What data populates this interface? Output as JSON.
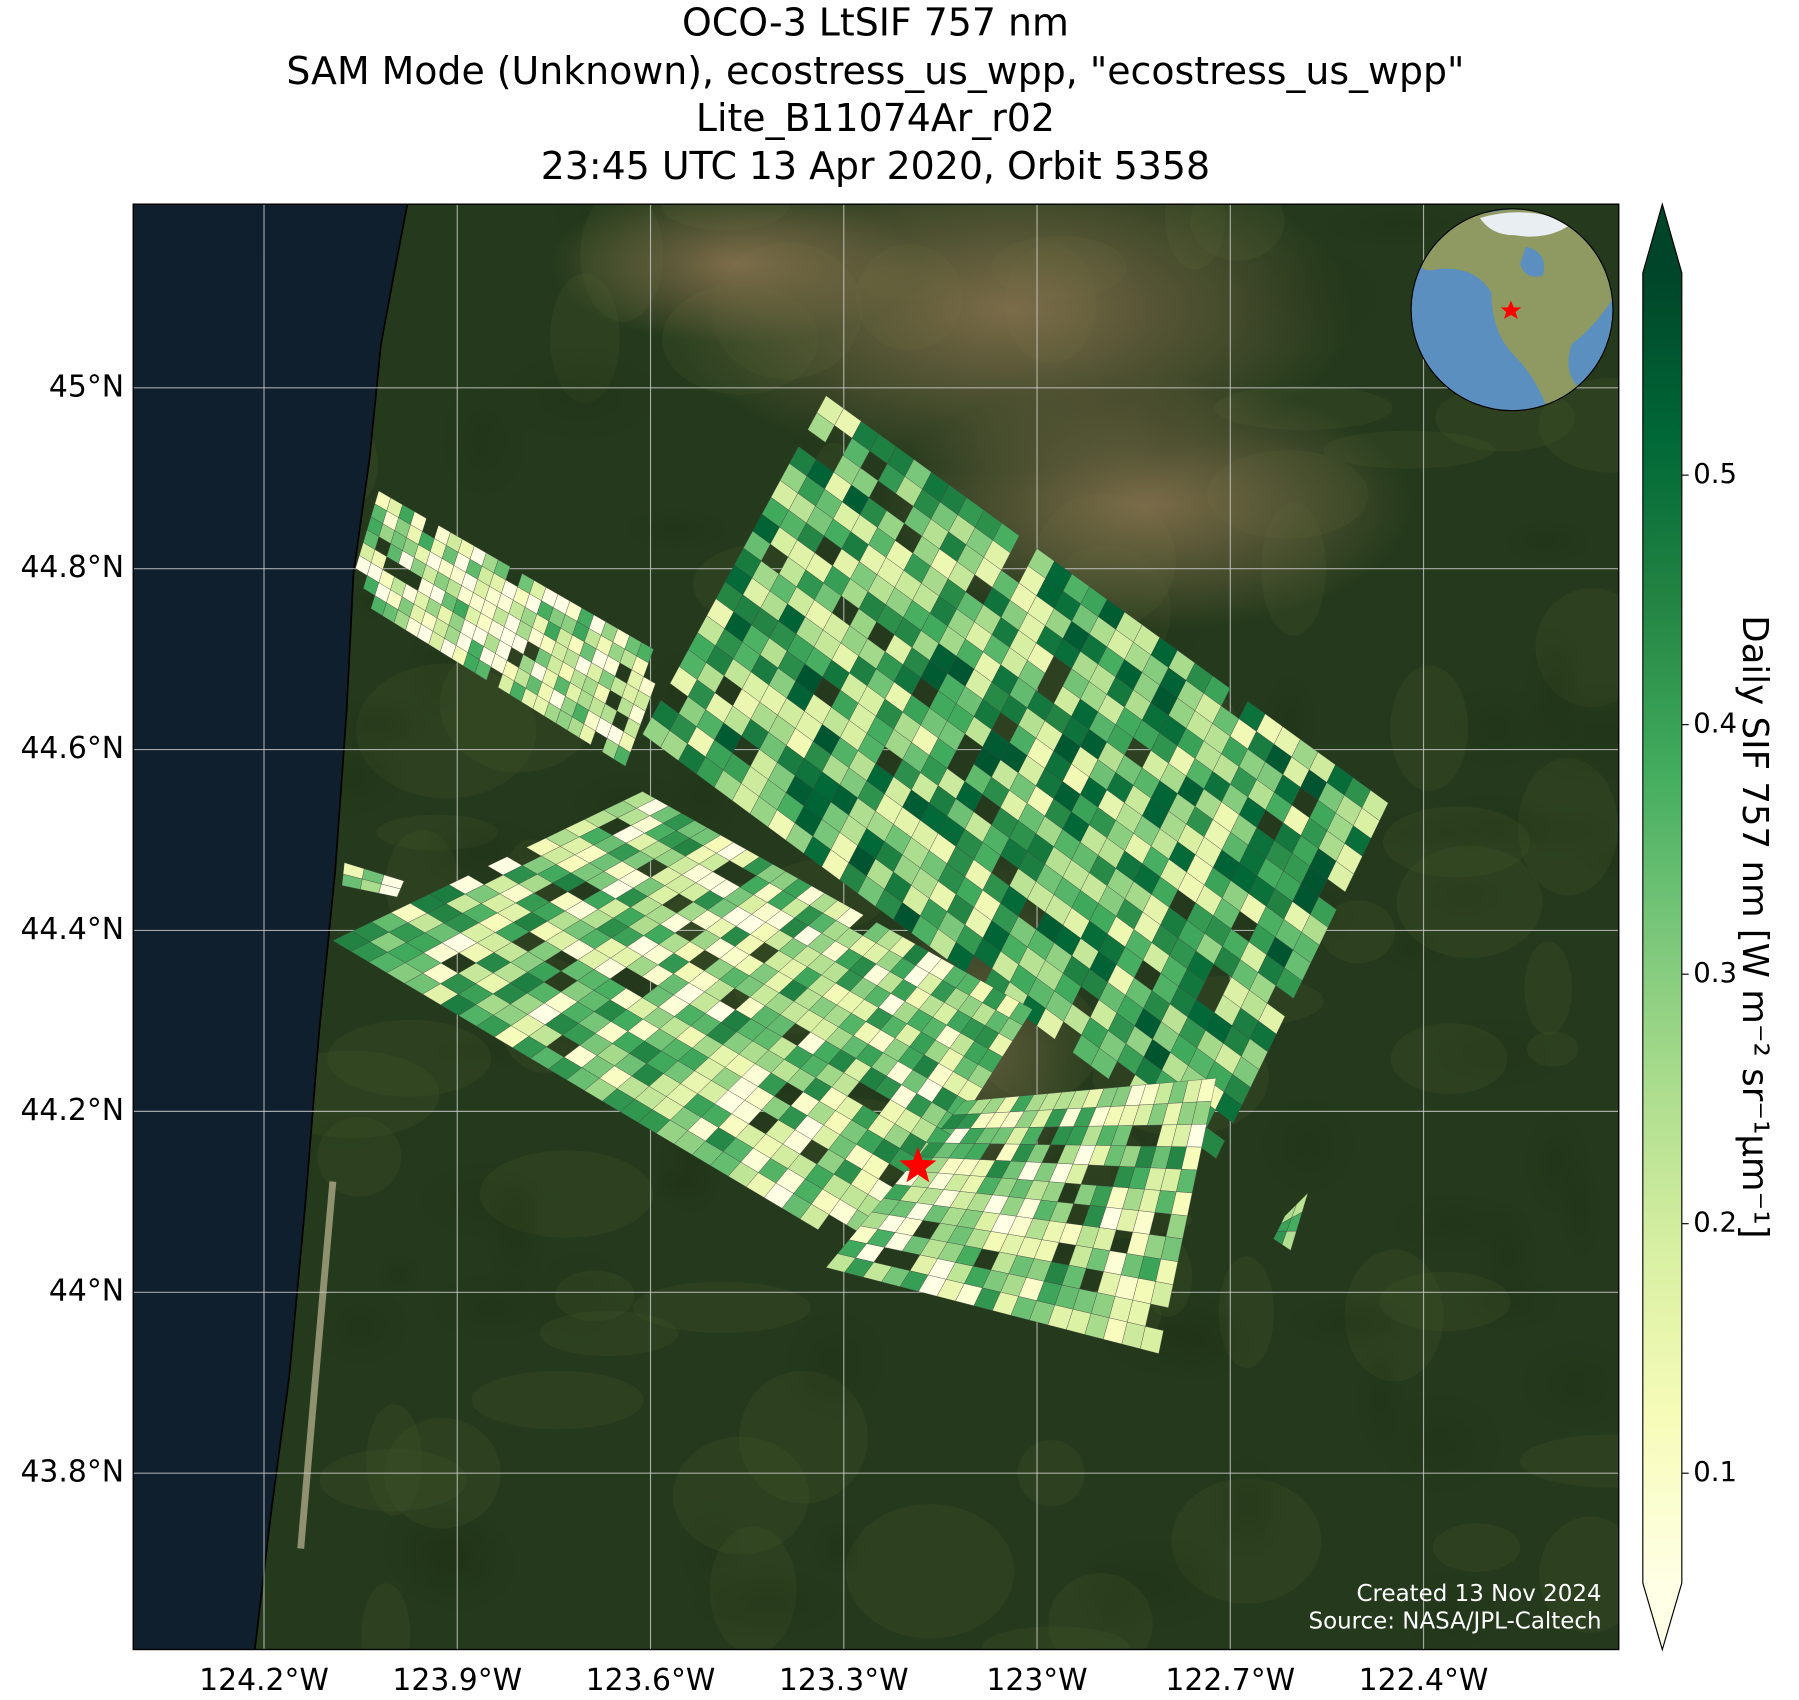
{
  "title": [
    "OCO-3 LtSIF 757 nm",
    "SAM Mode (Unknown), ecostress_us_wpp, \"ecostress_us_wpp\"",
    "Lite_B11074Ar_r02",
    "23:45 UTC 13 Apr 2020, Orbit 5358"
  ],
  "map": {
    "xlim": [
      -124.403,
      -122.097
    ],
    "ylim": [
      43.605,
      45.203
    ],
    "xticks": [
      {
        "value": -124.2,
        "label": "124.2°W"
      },
      {
        "value": -123.9,
        "label": "123.9°W"
      },
      {
        "value": -123.6,
        "label": "123.6°W"
      },
      {
        "value": -123.3,
        "label": "123.3°W"
      },
      {
        "value": -123.0,
        "label": "123°W"
      },
      {
        "value": -122.7,
        "label": "122.7°W"
      },
      {
        "value": -122.4,
        "label": "122.4°W"
      }
    ],
    "yticks": [
      {
        "value": 43.8,
        "label": "43.8°N"
      },
      {
        "value": 44.0,
        "label": "44°N"
      },
      {
        "value": 44.2,
        "label": "44.2°N"
      },
      {
        "value": 44.4,
        "label": "44.4°N"
      },
      {
        "value": 44.6,
        "label": "44.6°N"
      },
      {
        "value": 44.8,
        "label": "44.8°N"
      },
      {
        "value": 45.0,
        "label": "45°N"
      }
    ],
    "grid": true,
    "target": {
      "lon": -123.185,
      "lat": 44.139,
      "color": "#ff0000"
    }
  },
  "colorbar": {
    "label": "Daily SIF 757 nm [W m⁻² sr⁻¹μm⁻¹]",
    "lim": [
      0.056,
      0.581
    ],
    "ticks": [
      0.1,
      0.2,
      0.3,
      0.4,
      0.5
    ],
    "colormap": "YlGn",
    "extend": "both"
  },
  "credits": [
    "Created 13 Nov 2024",
    "Source: NASA/JPL-Caltech"
  ]
}
